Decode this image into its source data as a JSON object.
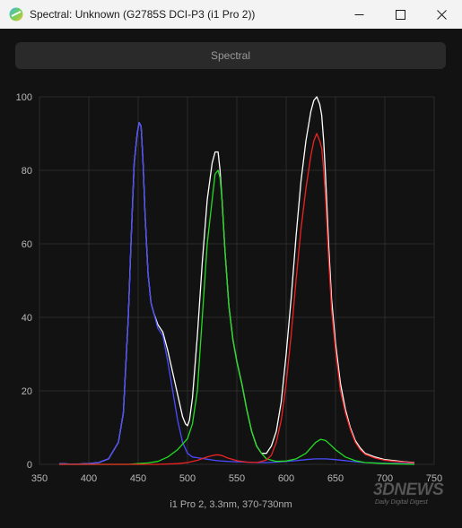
{
  "window": {
    "title": "Spectral: Unknown (G2785S DCI-P3 (i1 Pro 2))",
    "controls": [
      "minimize",
      "maximize",
      "close"
    ]
  },
  "panel": {
    "button_label": "Spectral"
  },
  "watermark": {
    "brand": "3DNEWS",
    "tagline": "Daily Digital Digest"
  },
  "chart_data": {
    "type": "line",
    "title": "",
    "xlabel": "i1 Pro 2, 3.3nm, 370-730nm",
    "ylabel": "",
    "xlim": [
      350,
      750
    ],
    "ylim": [
      0,
      100
    ],
    "xticks": [
      350,
      400,
      450,
      500,
      550,
      600,
      650,
      700,
      750
    ],
    "yticks": [
      0,
      20,
      40,
      60,
      80,
      100
    ],
    "grid": true,
    "legend": "none",
    "series": [
      {
        "color": "#ffffff",
        "x": [
          370,
          380,
          390,
          400,
          410,
          420,
          430,
          435,
          440,
          443,
          446,
          449,
          451,
          453,
          455,
          457,
          460,
          463,
          466,
          470,
          475,
          480,
          485,
          490,
          495,
          498,
          500,
          502,
          505,
          510,
          515,
          520,
          525,
          528,
          531,
          533,
          535,
          538,
          542,
          546,
          550,
          555,
          560,
          565,
          570,
          575,
          580,
          585,
          590,
          595,
          600,
          605,
          610,
          615,
          620,
          625,
          628,
          631,
          634,
          636,
          638,
          640,
          643,
          646,
          650,
          655,
          660,
          665,
          670,
          675,
          680,
          690,
          700,
          710,
          720,
          730
        ],
        "y": [
          0.2,
          0.1,
          0.1,
          0.2,
          0.5,
          1.5,
          6,
          14,
          40,
          62,
          82,
          90,
          93,
          92,
          82,
          68,
          52,
          44,
          41,
          38,
          36,
          31,
          25,
          19,
          13,
          11,
          10.5,
          12,
          18,
          35,
          55,
          72,
          82,
          85,
          85,
          80,
          72,
          58,
          43,
          34,
          28,
          22,
          15,
          9,
          5,
          3,
          3,
          5,
          9,
          17,
          30,
          45,
          62,
          77,
          88,
          96,
          99,
          100,
          98,
          95,
          88,
          78,
          60,
          45,
          33,
          22,
          15,
          10,
          6.5,
          4.5,
          3,
          2,
          1.3,
          1,
          0.7,
          0.5
        ]
      },
      {
        "color": "#4a4cff",
        "x": [
          370,
          380,
          390,
          400,
          410,
          420,
          430,
          435,
          440,
          443,
          446,
          449,
          451,
          453,
          455,
          457,
          460,
          463,
          466,
          470,
          475,
          480,
          485,
          490,
          495,
          500,
          505,
          510,
          515,
          520,
          530,
          540,
          550,
          560,
          570,
          580,
          590,
          600,
          610,
          620,
          630,
          640,
          650,
          660,
          670,
          680,
          700,
          730
        ],
        "y": [
          0.2,
          0.1,
          0.1,
          0.2,
          0.5,
          1.5,
          6,
          14,
          40,
          62,
          82,
          90,
          93,
          92,
          82,
          68,
          52,
          44,
          41,
          37,
          35,
          28,
          20,
          12,
          6,
          3,
          2,
          1.8,
          1.6,
          1.4,
          1,
          0.8,
          0.7,
          0.6,
          0.5,
          0.5,
          0.6,
          0.8,
          1,
          1.3,
          1.5,
          1.5,
          1.3,
          1,
          0.7,
          0.5,
          0.3,
          0.2
        ]
      },
      {
        "color": "#22dd22",
        "x": [
          370,
          440,
          450,
          460,
          470,
          480,
          490,
          495,
          500,
          505,
          510,
          515,
          520,
          525,
          528,
          531,
          533,
          535,
          538,
          542,
          546,
          550,
          555,
          560,
          565,
          570,
          575,
          580,
          590,
          600,
          610,
          620,
          625,
          630,
          635,
          640,
          645,
          650,
          660,
          670,
          680,
          700,
          730
        ],
        "y": [
          0,
          0,
          0.2,
          0.4,
          0.8,
          2,
          4,
          5.5,
          7,
          11,
          20,
          40,
          60,
          72,
          79,
          80,
          78,
          72,
          58,
          43,
          34,
          28,
          22,
          15,
          9,
          5,
          3,
          1.5,
          0.8,
          0.9,
          1.5,
          3,
          4.5,
          6,
          6.8,
          6.5,
          5.3,
          4,
          2,
          1,
          0.5,
          0.2,
          0
        ]
      },
      {
        "color": "#ee2222",
        "x": [
          370,
          470,
          490,
          500,
          510,
          520,
          525,
          530,
          535,
          540,
          550,
          560,
          570,
          575,
          580,
          585,
          590,
          595,
          600,
          605,
          610,
          615,
          620,
          625,
          628,
          631,
          634,
          636,
          638,
          640,
          643,
          646,
          650,
          655,
          660,
          665,
          670,
          675,
          680,
          690,
          700,
          710,
          720,
          730
        ],
        "y": [
          0,
          0,
          0.2,
          0.5,
          1.1,
          2,
          2.4,
          2.6,
          2.4,
          1.8,
          1,
          0.6,
          0.5,
          0.8,
          1.2,
          2.5,
          6,
          12,
          22,
          35,
          50,
          64,
          75,
          84,
          88,
          90,
          88,
          86,
          80,
          72,
          56,
          42,
          31,
          20,
          14,
          9.5,
          6,
          4,
          2.7,
          1.7,
          1.1,
          0.8,
          0.6,
          0.4
        ]
      }
    ]
  }
}
